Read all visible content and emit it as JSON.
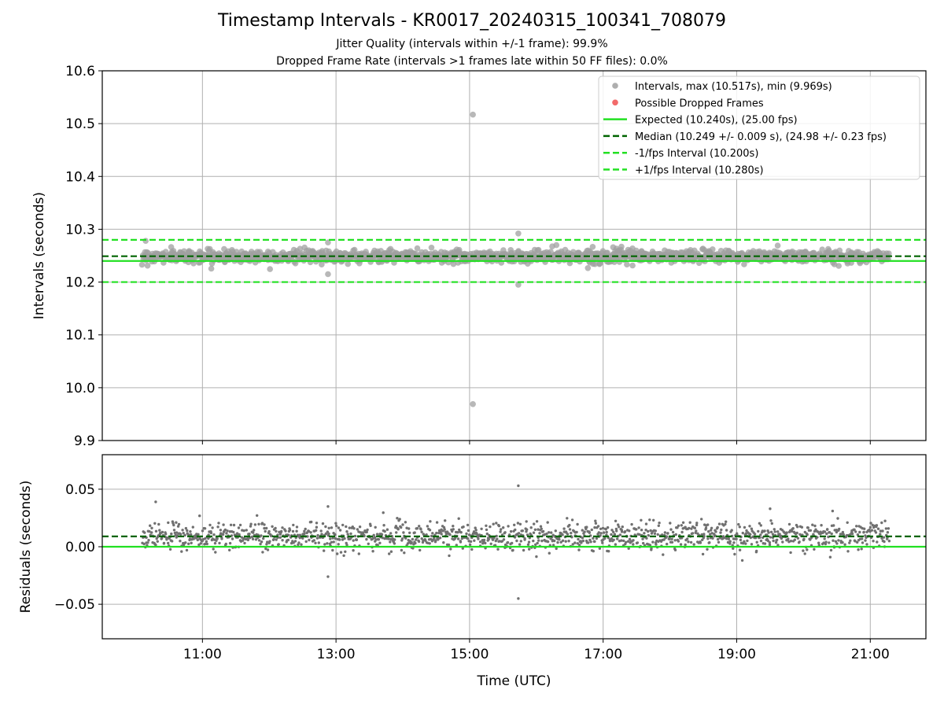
{
  "figure": {
    "title": "Timestamp Intervals - KR0017_20240315_100341_708079",
    "subtitle_jitter": "Jitter Quality (intervals within +/-1 frame): 99.9%",
    "subtitle_dropped": "Dropped Frame Rate (intervals >1 frames late within 50 FF files): 0.0%"
  },
  "chart_data": [
    {
      "type": "scatter",
      "panel": "intervals",
      "ylabel": "Intervals (seconds)",
      "ylim": [
        9.9,
        10.6
      ],
      "yticks": [
        9.9,
        10.0,
        10.1,
        10.2,
        10.3,
        10.4,
        10.5,
        10.6
      ],
      "ytick_labels": [
        "9.9",
        "10.0",
        "10.1",
        "10.2",
        "10.3",
        "10.4",
        "10.5",
        "10.6"
      ],
      "xlim_hours": [
        9.5,
        21.833
      ],
      "xticks_hours": [
        11,
        13,
        15,
        17,
        19,
        21
      ],
      "xtick_labels": [
        "11:00",
        "13:00",
        "15:00",
        "17:00",
        "19:00",
        "21:00"
      ],
      "grid": true,
      "legend_position": "top-right",
      "series": [
        {
          "name": "Intervals, max (10.517s), min (9.969s)",
          "kind": "points",
          "color": "#a0a0a0",
          "x_range_hours": [
            10.1,
            21.28
          ],
          "center": 10.249,
          "spread": 0.009,
          "outliers": [
            {
              "x": 15.05,
              "y": 10.517
            },
            {
              "x": 15.05,
              "y": 9.969
            },
            {
              "x": 15.73,
              "y": 10.292
            },
            {
              "x": 15.73,
              "y": 10.195
            },
            {
              "x": 12.88,
              "y": 10.215
            },
            {
              "x": 10.15,
              "y": 10.278
            },
            {
              "x": 12.88,
              "y": 10.275
            },
            {
              "x": 16.3,
              "y": 10.27
            }
          ]
        },
        {
          "name": "Possible Dropped Frames",
          "kind": "points",
          "color": "#f05050",
          "values": []
        },
        {
          "name": "Expected (10.240s), (25.00 fps)",
          "kind": "hline",
          "y": 10.24,
          "color": "#22e022",
          "dash": "solid"
        },
        {
          "name": "Median (10.249 +/- 0.009 s), (24.98 +/- 0.23 fps)",
          "kind": "hline",
          "y": 10.249,
          "color": "#006400",
          "dash": "dashed"
        },
        {
          "name": "-1/fps Interval (10.200s)",
          "kind": "hline",
          "y": 10.2,
          "color": "#22e022",
          "dash": "dashed"
        },
        {
          "name": "+1/fps Interval (10.280s)",
          "kind": "hline",
          "y": 10.28,
          "color": "#22e022",
          "dash": "dashed"
        }
      ]
    },
    {
      "type": "scatter",
      "panel": "residuals",
      "xlabel": "Time (UTC)",
      "ylabel": "Residuals (seconds)",
      "ylim": [
        -0.08,
        0.08
      ],
      "yticks": [
        -0.05,
        0.0,
        0.05
      ],
      "ytick_labels": [
        "−0.05",
        "0.00",
        "0.05"
      ],
      "xlim_hours": [
        9.5,
        21.833
      ],
      "xticks_hours": [
        11,
        13,
        15,
        17,
        19,
        21
      ],
      "xtick_labels": [
        "11:00",
        "13:00",
        "15:00",
        "17:00",
        "19:00",
        "21:00"
      ],
      "grid": true,
      "series": [
        {
          "kind": "points",
          "color": "#707070",
          "x_range_hours": [
            10.1,
            21.28
          ],
          "center": 0.009,
          "spread": 0.009,
          "outliers": [
            {
              "x": 15.73,
              "y": 0.053
            },
            {
              "x": 15.73,
              "y": -0.045
            },
            {
              "x": 10.3,
              "y": 0.039
            },
            {
              "x": 12.88,
              "y": 0.035
            },
            {
              "x": 12.88,
              "y": -0.026
            },
            {
              "x": 19.5,
              "y": 0.033
            }
          ]
        },
        {
          "kind": "hline",
          "y": 0.009,
          "color": "#006400",
          "dash": "dashed"
        },
        {
          "kind": "hline",
          "y": 0.0,
          "color": "#22e022",
          "dash": "solid"
        }
      ]
    }
  ]
}
